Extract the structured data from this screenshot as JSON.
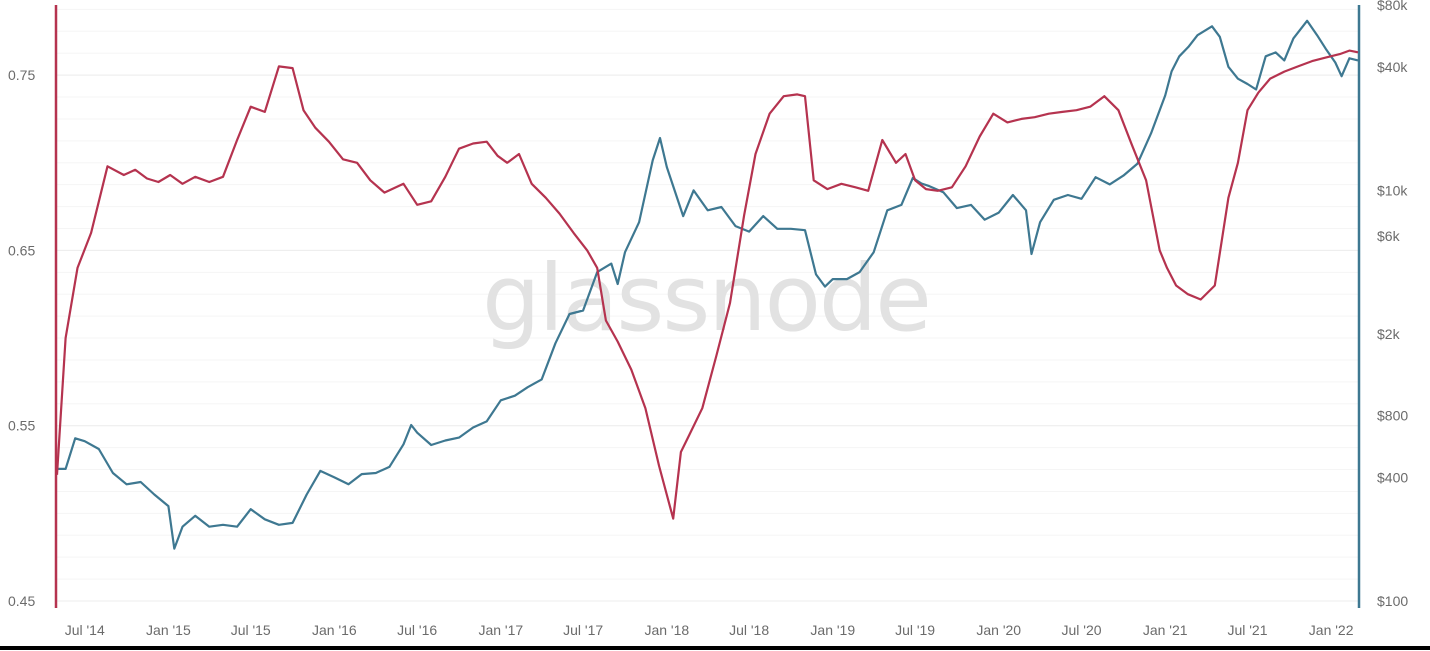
{
  "watermark": "glassnode",
  "colors": {
    "left_series": "#b5334f",
    "right_series": "#3e7891",
    "grid": "#ededed",
    "minor_grid": "#f5f5f5",
    "tick_text": "#6b6b6b"
  },
  "chart_data": {
    "type": "line",
    "title": "",
    "xlabel": "",
    "y_left": {
      "ticks": [
        "0.45",
        "0.55",
        "0.65",
        "0.75"
      ],
      "range": [
        0.45,
        0.79
      ]
    },
    "y_right": {
      "scale": "log",
      "ticks": [
        "$100",
        "$400",
        "$800",
        "$2k",
        "$6k",
        "$10k",
        "$40k",
        "$80k"
      ],
      "tick_values": [
        100,
        400,
        800,
        2000,
        6000,
        10000,
        40000,
        80000
      ],
      "range": [
        100,
        80000
      ]
    },
    "x_range": [
      "2014-05-01",
      "2022-03-01"
    ],
    "x_ticks": [
      {
        "date": "2014-07-01",
        "label": "Jul '14"
      },
      {
        "date": "2015-01-01",
        "label": "Jan '15"
      },
      {
        "date": "2015-07-01",
        "label": "Jul '15"
      },
      {
        "date": "2016-01-01",
        "label": "Jan '16"
      },
      {
        "date": "2016-07-01",
        "label": "Jul '16"
      },
      {
        "date": "2017-01-01",
        "label": "Jan '17"
      },
      {
        "date": "2017-07-01",
        "label": "Jul '17"
      },
      {
        "date": "2018-01-01",
        "label": "Jan '18"
      },
      {
        "date": "2018-07-01",
        "label": "Jul '18"
      },
      {
        "date": "2019-01-01",
        "label": "Jan '19"
      },
      {
        "date": "2019-07-01",
        "label": "Jul '19"
      },
      {
        "date": "2020-01-01",
        "label": "Jan '20"
      },
      {
        "date": "2020-07-01",
        "label": "Jul '20"
      },
      {
        "date": "2021-01-01",
        "label": "Jan '21"
      },
      {
        "date": "2021-07-01",
        "label": "Jul '21"
      },
      {
        "date": "2022-01-01",
        "label": "Jan '22"
      }
    ],
    "grid": true,
    "legend": "none",
    "series": [
      {
        "axis": "left",
        "x": [
          "2014-05-01",
          "2014-05-20",
          "2014-06-15",
          "2014-07-15",
          "2014-08-20",
          "2014-09-25",
          "2014-10-20",
          "2014-11-15",
          "2014-12-10",
          "2015-01-05",
          "2015-02-01",
          "2015-03-01",
          "2015-04-01",
          "2015-05-01",
          "2015-06-01",
          "2015-07-01",
          "2015-08-01",
          "2015-09-01",
          "2015-10-01",
          "2015-10-25",
          "2015-11-20",
          "2015-12-20",
          "2016-01-20",
          "2016-02-20",
          "2016-03-20",
          "2016-04-20",
          "2016-06-01",
          "2016-07-01",
          "2016-08-01",
          "2016-09-01",
          "2016-10-01",
          "2016-11-01",
          "2016-12-01",
          "2016-12-25",
          "2017-01-15",
          "2017-02-10",
          "2017-03-10",
          "2017-04-10",
          "2017-05-10",
          "2017-06-10",
          "2017-07-10",
          "2017-08-01",
          "2017-08-20",
          "2017-09-15",
          "2017-10-15",
          "2017-11-15",
          "2017-12-15",
          "2018-01-15",
          "2018-02-01",
          "2018-02-20",
          "2018-03-20",
          "2018-04-20",
          "2018-05-20",
          "2018-06-20",
          "2018-07-15",
          "2018-08-15",
          "2018-09-15",
          "2018-10-15",
          "2018-11-01",
          "2018-11-20",
          "2018-12-20",
          "2019-01-20",
          "2019-02-20",
          "2019-03-20",
          "2019-04-20",
          "2019-05-20",
          "2019-06-10",
          "2019-07-01",
          "2019-07-25",
          "2019-08-20",
          "2019-09-20",
          "2019-10-20",
          "2019-11-20",
          "2019-12-20",
          "2020-01-20",
          "2020-02-20",
          "2020-03-20",
          "2020-04-20",
          "2020-05-20",
          "2020-06-20",
          "2020-07-20",
          "2020-08-20",
          "2020-09-20",
          "2020-10-20",
          "2020-11-20",
          "2020-12-20",
          "2021-01-05",
          "2021-01-25",
          "2021-02-20",
          "2021-03-20",
          "2021-04-20",
          "2021-05-20",
          "2021-06-10",
          "2021-07-01",
          "2021-07-25",
          "2021-08-20",
          "2021-09-20",
          "2021-10-20",
          "2021-11-20",
          "2021-12-20",
          "2022-01-20",
          "2022-02-10",
          "2022-03-01"
        ],
        "values": [
          0.522,
          0.6,
          0.64,
          0.66,
          0.698,
          0.693,
          0.696,
          0.691,
          0.689,
          0.693,
          0.688,
          0.692,
          0.689,
          0.692,
          0.713,
          0.732,
          0.729,
          0.755,
          0.754,
          0.73,
          0.72,
          0.712,
          0.702,
          0.7,
          0.69,
          0.683,
          0.688,
          0.676,
          0.678,
          0.692,
          0.708,
          0.711,
          0.712,
          0.704,
          0.7,
          0.705,
          0.688,
          0.68,
          0.671,
          0.66,
          0.65,
          0.64,
          0.61,
          0.598,
          0.582,
          0.56,
          0.527,
          0.497,
          0.535,
          0.545,
          0.56,
          0.59,
          0.62,
          0.67,
          0.705,
          0.728,
          0.738,
          0.739,
          0.738,
          0.69,
          0.685,
          0.688,
          0.686,
          0.684,
          0.713,
          0.7,
          0.705,
          0.69,
          0.685,
          0.684,
          0.686,
          0.698,
          0.715,
          0.728,
          0.723,
          0.725,
          0.726,
          0.728,
          0.729,
          0.73,
          0.732,
          0.738,
          0.73,
          0.71,
          0.69,
          0.65,
          0.64,
          0.63,
          0.625,
          0.622,
          0.63,
          0.68,
          0.7,
          0.73,
          0.74,
          0.748,
          0.752,
          0.755,
          0.758,
          0.76,
          0.762,
          0.764,
          0.763
        ]
      },
      {
        "axis": "right",
        "x": [
          "2014-05-01",
          "2014-05-20",
          "2014-06-10",
          "2014-07-01",
          "2014-08-01",
          "2014-09-01",
          "2014-10-01",
          "2014-11-01",
          "2014-12-01",
          "2015-01-01",
          "2015-01-14",
          "2015-02-01",
          "2015-03-01",
          "2015-04-01",
          "2015-05-01",
          "2015-06-01",
          "2015-07-01",
          "2015-08-01",
          "2015-09-01",
          "2015-10-01",
          "2015-11-01",
          "2015-12-01",
          "2016-01-01",
          "2016-02-01",
          "2016-03-01",
          "2016-04-01",
          "2016-05-01",
          "2016-06-01",
          "2016-06-18",
          "2016-07-01",
          "2016-08-01",
          "2016-09-01",
          "2016-10-01",
          "2016-11-01",
          "2016-12-01",
          "2017-01-01",
          "2017-02-01",
          "2017-03-01",
          "2017-04-01",
          "2017-05-01",
          "2017-06-01",
          "2017-07-01",
          "2017-08-01",
          "2017-09-01",
          "2017-09-15",
          "2017-10-01",
          "2017-11-01",
          "2017-12-01",
          "2017-12-17",
          "2018-01-01",
          "2018-02-06",
          "2018-03-01",
          "2018-04-01",
          "2018-05-01",
          "2018-06-01",
          "2018-07-01",
          "2018-08-01",
          "2018-09-01",
          "2018-10-01",
          "2018-11-01",
          "2018-11-25",
          "2018-12-15",
          "2019-01-01",
          "2019-02-01",
          "2019-03-01",
          "2019-04-01",
          "2019-05-01",
          "2019-06-01",
          "2019-06-26",
          "2019-07-15",
          "2019-08-01",
          "2019-09-01",
          "2019-10-01",
          "2019-11-01",
          "2019-12-01",
          "2020-01-01",
          "2020-02-01",
          "2020-03-01",
          "2020-03-13",
          "2020-04-01",
          "2020-05-01",
          "2020-06-01",
          "2020-07-01",
          "2020-08-01",
          "2020-09-01",
          "2020-10-01",
          "2020-11-01",
          "2020-12-01",
          "2021-01-01",
          "2021-01-15",
          "2021-02-01",
          "2021-02-21",
          "2021-03-13",
          "2021-04-14",
          "2021-05-01",
          "2021-05-20",
          "2021-06-10",
          "2021-07-01",
          "2021-07-20",
          "2021-08-10",
          "2021-09-01",
          "2021-09-20",
          "2021-10-10",
          "2021-11-09",
          "2021-12-01",
          "2021-12-20",
          "2022-01-10",
          "2022-01-24",
          "2022-02-10",
          "2022-03-01"
        ],
        "values": [
          440,
          440,
          620,
          600,
          550,
          420,
          370,
          380,
          330,
          290,
          180,
          230,
          260,
          230,
          235,
          230,
          280,
          250,
          235,
          240,
          330,
          430,
          400,
          370,
          415,
          420,
          450,
          580,
          720,
          660,
          575,
          605,
          625,
          700,
          750,
          950,
          1000,
          1100,
          1200,
          1800,
          2500,
          2600,
          4000,
          4400,
          3500,
          5000,
          7000,
          14000,
          18000,
          13000,
          7500,
          10000,
          8000,
          8300,
          6700,
          6300,
          7500,
          6500,
          6500,
          6400,
          3900,
          3400,
          3700,
          3700,
          4000,
          5000,
          8000,
          8500,
          11500,
          10800,
          10500,
          9800,
          8200,
          8500,
          7200,
          7800,
          9500,
          8000,
          4900,
          7000,
          9000,
          9500,
          9100,
          11600,
          10700,
          11800,
          13500,
          19000,
          29000,
          38000,
          45000,
          50000,
          57000,
          63000,
          56000,
          40000,
          35000,
          33000,
          31000,
          45000,
          47000,
          43000,
          55000,
          67000,
          57000,
          49000,
          42000,
          36000,
          44000,
          43000
        ]
      }
    ]
  }
}
